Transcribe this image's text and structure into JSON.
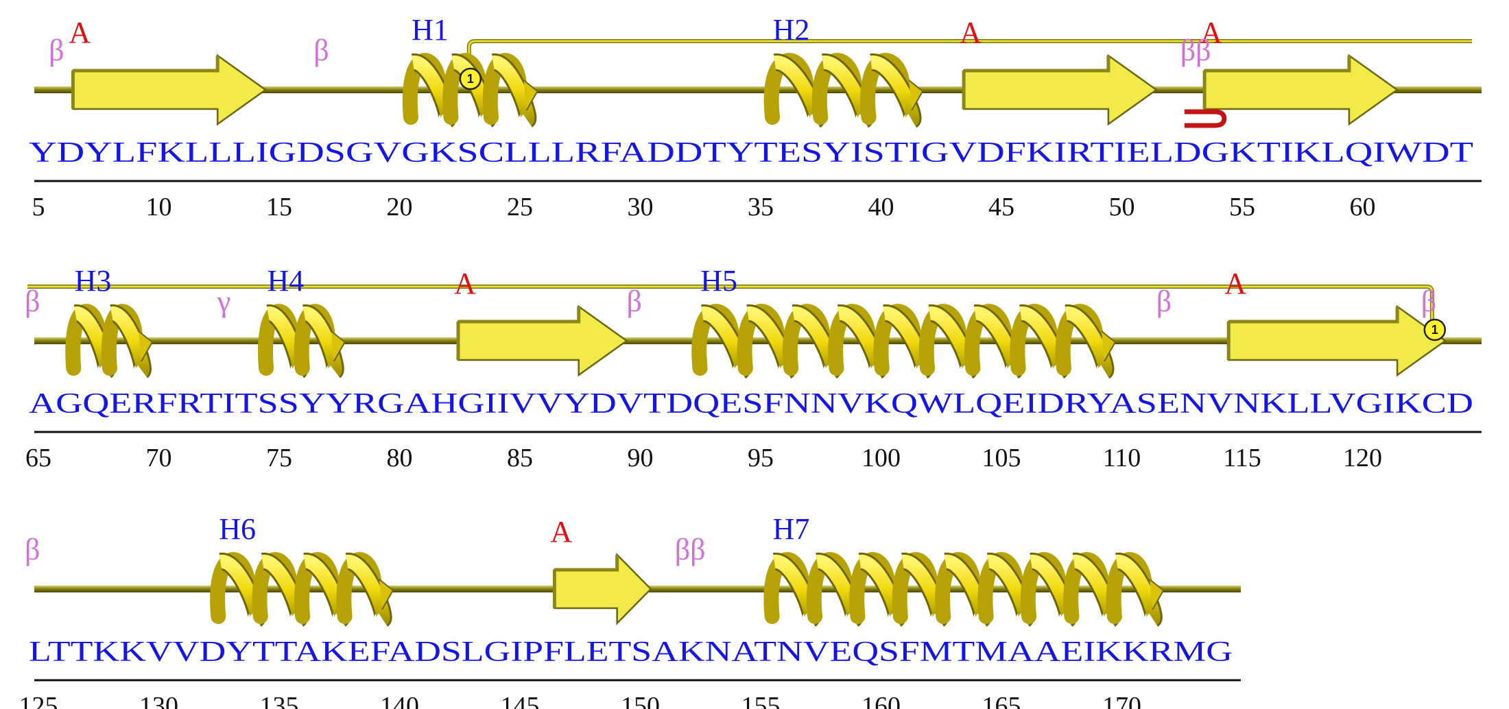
{
  "colors": {
    "sequence": "#1515e8",
    "helix_label": "#1515e8",
    "strand_label": "#e01010",
    "turn_label": "#d070d8",
    "numbers": "#111111",
    "backbone": "#7d7a12",
    "element_fill": "#f2ea48",
    "helix_yellow": "#f0dc10",
    "disulfide": "#e8e030",
    "hairpin": "#c41414"
  },
  "icons": {
    "strand": "arrow-icon",
    "helix": "helix-ribbon-icon",
    "disulfide": "disulfide-bond-icon",
    "hairpin": "beta-hairpin-icon"
  },
  "rows": [
    {
      "start": 5,
      "sequence": "YDYLFKLLLIGDSGVGKSCLLLRFADDTYTESYISTIGVDFKIRTIELDGKTIKLQIWDT",
      "ticks": [
        "5",
        "10",
        "15",
        "20",
        "25",
        "30",
        "35",
        "40",
        "45",
        "50",
        "55",
        "60"
      ],
      "strands": [
        {
          "label": "A",
          "from": 7,
          "to": 14
        },
        {
          "label": "A",
          "from": 44,
          "to": 51
        },
        {
          "label": "A",
          "from": 54,
          "to": 61
        }
      ],
      "helices": [
        {
          "label": "H1",
          "from": 21,
          "to": 25
        },
        {
          "label": "H2",
          "from": 36,
          "to": 41
        }
      ],
      "turns": [
        {
          "label": "β",
          "at": 6
        },
        {
          "label": "β",
          "at": 17
        },
        {
          "label": "ββ",
          "at": 53
        }
      ],
      "hairpins": [
        {
          "at": 53
        }
      ],
      "ssbonds": [
        {
          "label": "1",
          "at": 23,
          "direction": "out"
        }
      ]
    },
    {
      "start": 65,
      "sequence": "AGQERFRTITSSYYRGAHGIIVVYDVTDQESFNNVKQWLQEIDRYASENVNKLLVGIKCD",
      "ticks": [
        "65",
        "70",
        "75",
        "80",
        "85",
        "90",
        "95",
        "100",
        "105",
        "110",
        "115",
        "120"
      ],
      "strands": [
        {
          "label": "A",
          "from": 83,
          "to": 89
        },
        {
          "label": "A",
          "from": 115,
          "to": 123
        }
      ],
      "helices": [
        {
          "label": "H3",
          "from": 67,
          "to": 69
        },
        {
          "label": "H4",
          "from": 75,
          "to": 77
        },
        {
          "label": "H5",
          "from": 93,
          "to": 109
        }
      ],
      "turns": [
        {
          "label": "β",
          "at": 65
        },
        {
          "label": "γ",
          "at": 73
        },
        {
          "label": "β",
          "at": 90
        },
        {
          "label": "β",
          "at": 112
        },
        {
          "label": "β",
          "at": 123
        }
      ],
      "hairpins": [],
      "ssbonds": [
        {
          "label": "1",
          "at": 123,
          "direction": "in"
        }
      ]
    },
    {
      "start": 125,
      "sequence": "LTTKKVVDYTTAKEFADSLGIPFLETSAKNATNVEQSFMTMAAEIKKRMG",
      "ticks": [
        "125",
        "130",
        "135",
        "140",
        "145",
        "150",
        "155",
        "160",
        "165",
        "170"
      ],
      "strands": [
        {
          "label": "A",
          "from": 147,
          "to": 150
        }
      ],
      "helices": [
        {
          "label": "H6",
          "from": 133,
          "to": 139
        },
        {
          "label": "H7",
          "from": 156,
          "to": 171
        }
      ],
      "turns": [
        {
          "label": "β",
          "at": 125
        },
        {
          "label": "ββ",
          "at": 152
        }
      ],
      "hairpins": [],
      "ssbonds": []
    }
  ]
}
